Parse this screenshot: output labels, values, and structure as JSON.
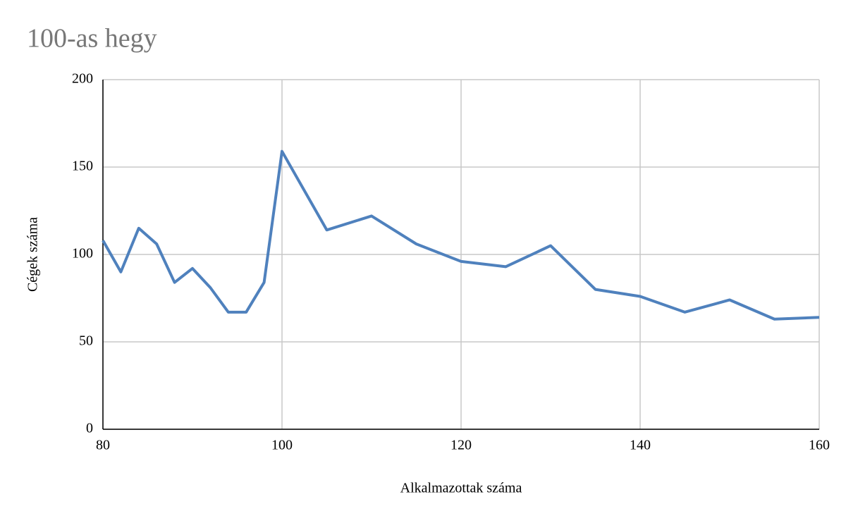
{
  "chart_data": {
    "type": "line",
    "title": "100-as hegy",
    "x_label": "Alkalmazottak száma",
    "y_label": "Cégek száma",
    "x": [
      80,
      82,
      84,
      86,
      88,
      90,
      92,
      94,
      96,
      98,
      100,
      105,
      110,
      115,
      120,
      125,
      130,
      135,
      140,
      145,
      150,
      155,
      160
    ],
    "values": [
      108,
      90,
      115,
      106,
      84,
      92,
      81,
      67,
      67,
      84,
      159,
      114,
      122,
      106,
      96,
      93,
      105,
      80,
      76,
      67,
      74,
      63,
      64
    ],
    "color": "#4f81bd",
    "xlim": [
      80,
      160
    ],
    "xticks": [
      80,
      100,
      120,
      140,
      160
    ],
    "ylim": [
      0,
      200
    ],
    "yticks": [
      0,
      50,
      100,
      150,
      200
    ],
    "grid": true
  }
}
